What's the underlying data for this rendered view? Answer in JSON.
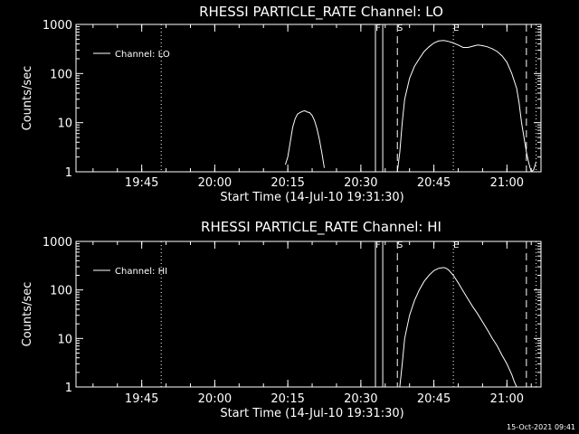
{
  "chart_data": [
    {
      "type": "line",
      "title": "RHESSI PARTICLE_RATE Channel: LO",
      "xlabel": "Start Time (14-Jul-10 19:31:30)",
      "ylabel": "Counts/sec",
      "yscale": "log",
      "ylim": [
        1,
        1000
      ],
      "xlim": [
        "19:31:30",
        "21:07:00"
      ],
      "x_ticks": [
        "19:45",
        "20:00",
        "20:15",
        "20:30",
        "20:45",
        "21:00"
      ],
      "y_ticks": [
        "1",
        "10",
        "100",
        "1000"
      ],
      "legend": {
        "label": "Channel: LO",
        "placement": "top-left"
      },
      "series": [
        {
          "name": "Channel: LO",
          "segments": [
            {
              "x": [
                "20:14:30",
                "20:15:00",
                "20:15:30",
                "20:16:00",
                "20:16:30",
                "20:17:00",
                "20:17:30",
                "20:18:00",
                "20:18:30",
                "20:19:00",
                "20:19:30",
                "20:20:00",
                "20:20:30",
                "20:21:00",
                "20:21:30",
                "20:22:00",
                "20:22:30"
              ],
              "y": [
                1.4,
                2.0,
                4.0,
                8.0,
                12.0,
                15.0,
                16.0,
                17.0,
                17.5,
                16.5,
                16.0,
                14.0,
                11.0,
                7.5,
                4.5,
                2.4,
                1.2
              ]
            },
            {
              "x": [
                "20:37:30",
                "20:38:00",
                "20:38:30",
                "20:39:00",
                "20:40:00",
                "20:41:00",
                "20:42:00",
                "20:43:00",
                "20:44:00",
                "20:45:00",
                "20:46:00",
                "20:47:00",
                "20:48:00",
                "20:49:00",
                "20:50:00",
                "20:51:00",
                "20:52:00",
                "20:53:00",
                "20:54:00",
                "20:55:00",
                "20:56:00",
                "20:57:00",
                "20:58:00",
                "20:59:00",
                "21:00:00",
                "21:01:00",
                "21:02:00",
                "21:02:30",
                "21:03:00",
                "21:03:30",
                "21:04:00",
                "21:04:30",
                "21:05:00",
                "21:05:30",
                "21:06:00"
              ],
              "y": [
                1.0,
                2.5,
                10,
                30,
                80,
                140,
                200,
                280,
                350,
                420,
                460,
                470,
                450,
                420,
                380,
                340,
                340,
                360,
                380,
                370,
                350,
                320,
                280,
                230,
                170,
                100,
                50,
                25,
                10,
                5,
                2.5,
                1.5,
                1.0,
                1.1,
                1.6
              ]
            }
          ]
        }
      ],
      "vertical_markers": [
        {
          "label": "F",
          "x": "20:33:00",
          "style": "solid"
        },
        {
          "label": "",
          "x": "20:34:30",
          "style": "solid"
        },
        {
          "label": "S",
          "x": "20:37:30",
          "style": "dashed"
        },
        {
          "label": "E",
          "x": "20:49:00",
          "style": "dotted"
        },
        {
          "label": "",
          "x": "21:04:00",
          "style": "dashed"
        },
        {
          "label": "",
          "x": "21:06:00",
          "style": "dotted"
        },
        {
          "label": "",
          "x": "19:49:00",
          "style": "dotted"
        }
      ]
    },
    {
      "type": "line",
      "title": "RHESSI PARTICLE_RATE Channel: HI",
      "xlabel": "Start Time (14-Jul-10 19:31:30)",
      "ylabel": "Counts/sec",
      "yscale": "log",
      "ylim": [
        1,
        1000
      ],
      "xlim": [
        "19:31:30",
        "21:07:00"
      ],
      "x_ticks": [
        "19:45",
        "20:00",
        "20:15",
        "20:30",
        "20:45",
        "21:00"
      ],
      "y_ticks": [
        "1",
        "10",
        "100",
        "1000"
      ],
      "legend": {
        "label": "Channel: HI",
        "placement": "top-left"
      },
      "series": [
        {
          "name": "Channel: HI",
          "segments": [
            {
              "x": [
                "20:38:00",
                "20:38:30",
                "20:39:00",
                "20:40:00",
                "20:41:00",
                "20:42:00",
                "20:43:00",
                "20:44:00",
                "20:45:00",
                "20:46:00",
                "20:47:00",
                "20:47:30",
                "20:48:00",
                "20:49:00",
                "20:50:00",
                "20:51:00",
                "20:52:00",
                "20:53:00",
                "20:54:00",
                "20:55:00",
                "20:56:00",
                "20:57:00",
                "20:58:00",
                "20:59:00",
                "21:00:00",
                "21:01:00",
                "21:01:30",
                "21:02:00"
              ],
              "y": [
                1.0,
                3,
                10,
                30,
                60,
                100,
                150,
                200,
                250,
                280,
                290,
                280,
                260,
                200,
                140,
                95,
                65,
                45,
                32,
                22,
                15,
                10,
                7,
                4.5,
                3,
                1.8,
                1.3,
                1.0
              ]
            }
          ]
        }
      ],
      "vertical_markers": [
        {
          "label": "F",
          "x": "20:33:00",
          "style": "solid"
        },
        {
          "label": "",
          "x": "20:34:30",
          "style": "solid"
        },
        {
          "label": "S",
          "x": "20:37:30",
          "style": "dashed"
        },
        {
          "label": "E",
          "x": "20:49:00",
          "style": "dotted"
        },
        {
          "label": "",
          "x": "21:04:00",
          "style": "dashed"
        },
        {
          "label": "",
          "x": "21:06:00",
          "style": "dotted"
        },
        {
          "label": "",
          "x": "19:49:00",
          "style": "dotted"
        }
      ]
    }
  ],
  "footer": {
    "timestamp": "15-Oct-2021 09:41"
  }
}
